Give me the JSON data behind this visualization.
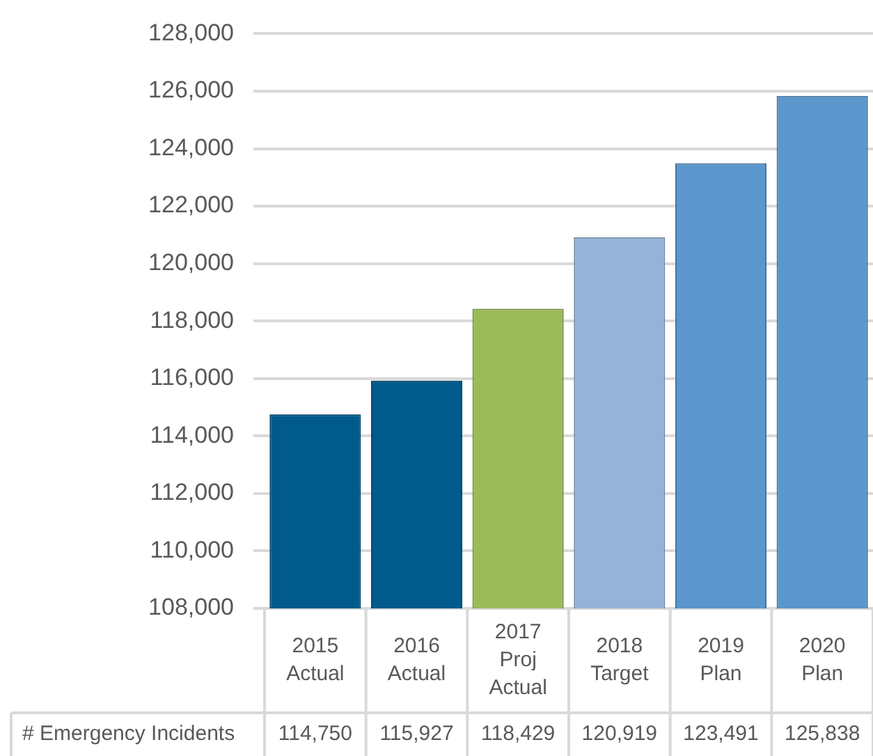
{
  "chart_data": {
    "type": "bar",
    "categories": [
      "2015 Actual",
      "2016 Actual",
      "2017 Proj Actual",
      "2018 Target",
      "2019 Plan",
      "2020 Plan"
    ],
    "series": [
      {
        "name": "# Emergency Incidents",
        "values": [
          114750,
          115927,
          118429,
          120919,
          123491,
          125838
        ],
        "value_labels": [
          "114,750",
          "115,927",
          "118,429",
          "120,919",
          "123,491",
          "125,838"
        ],
        "colors": [
          "#005a8c",
          "#005a8c",
          "#9bbb59",
          "#95b3d7",
          "#5b96cc",
          "#5b96cc"
        ]
      }
    ],
    "ylim": [
      108000,
      128000
    ],
    "yticks": [
      {
        "value": 108000,
        "label": "108,000"
      },
      {
        "value": 110000,
        "label": "110,000"
      },
      {
        "value": 112000,
        "label": "112,000"
      },
      {
        "value": 114000,
        "label": "114,000"
      },
      {
        "value": 116000,
        "label": "116,000"
      },
      {
        "value": 118000,
        "label": "118,000"
      },
      {
        "value": 120000,
        "label": "120,000"
      },
      {
        "value": 122000,
        "label": "122,000"
      },
      {
        "value": 124000,
        "label": "124,000"
      },
      {
        "value": 126000,
        "label": "126,000"
      },
      {
        "value": 128000,
        "label": "128,000"
      }
    ],
    "grid": "y",
    "legend": false
  }
}
